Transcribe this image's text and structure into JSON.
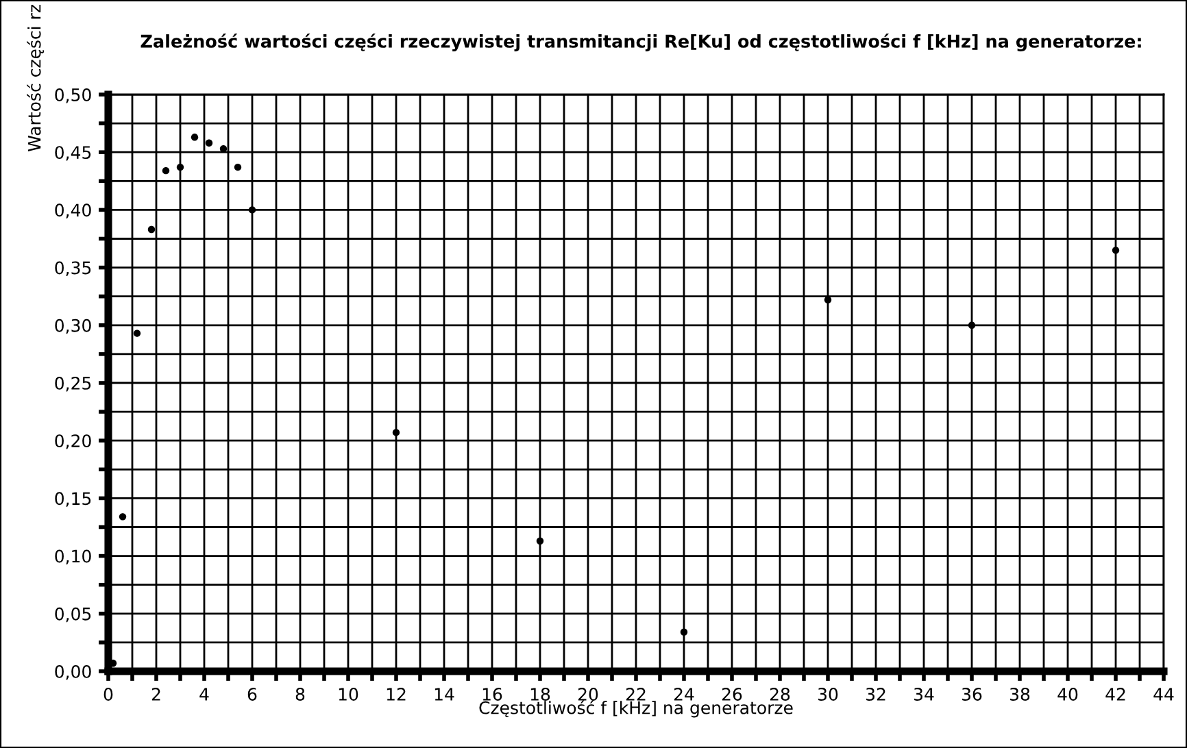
{
  "chart_data": {
    "type": "scatter",
    "title": "Zależność wartości części rzeczywistej transmitancji Re[Ku] od częstotliwości f [kHz] na generatorze:",
    "xlabel": "Częstotliwość f [kHz] na generatorze",
    "ylabel": "Wartość części rz",
    "x": [
      0.2,
      0.6,
      1.2,
      1.8,
      2.4,
      3.0,
      3.6,
      4.2,
      4.8,
      5.4,
      6.0,
      12,
      18,
      24,
      30,
      36,
      42
    ],
    "series": [
      {
        "color": "#000000",
        "values": [
          0.007,
          0.134,
          0.293,
          0.383,
          0.434,
          0.437,
          0.463,
          0.458,
          0.453,
          0.437,
          0.4,
          0.207,
          0.113,
          0.034,
          0.322,
          0.3,
          0.365
        ]
      }
    ],
    "marker": "circle",
    "grid": true,
    "legend": false,
    "xlim": [
      0,
      44
    ],
    "ylim": [
      0,
      0.5
    ],
    "xticks": [
      0,
      {
        "value": 1,
        "label": null
      },
      2,
      {
        "value": 3,
        "label": null
      },
      4,
      {
        "value": 5,
        "label": null
      },
      6,
      {
        "value": 7,
        "label": null
      },
      8,
      {
        "value": 9,
        "label": null
      },
      10,
      {
        "value": 11,
        "label": null
      },
      12,
      {
        "value": 13,
        "label": null
      },
      14,
      {
        "value": 15,
        "label": null
      },
      16,
      {
        "value": 17,
        "label": null
      },
      18,
      {
        "value": 19,
        "label": null
      },
      20,
      {
        "value": 21,
        "label": null
      },
      22,
      {
        "value": 23,
        "label": null
      },
      24,
      {
        "value": 25,
        "label": null
      },
      26,
      {
        "value": 27,
        "label": null
      },
      28,
      {
        "value": 29,
        "label": null
      },
      30,
      {
        "value": 31,
        "label": null
      },
      32,
      {
        "value": 33,
        "label": null
      },
      34,
      {
        "value": 35,
        "label": null
      },
      36,
      {
        "value": 37,
        "label": null
      },
      38,
      {
        "value": 39,
        "label": null
      },
      40,
      {
        "value": 41,
        "label": null
      },
      42,
      {
        "value": 43,
        "label": null
      },
      44
    ],
    "yticks": [
      {
        "value": 0,
        "label": "0,00"
      },
      {
        "value": 0.025,
        "label": null
      },
      {
        "value": 0.05,
        "label": "0,05"
      },
      {
        "value": 0.075,
        "label": null
      },
      {
        "value": 0.1,
        "label": "0,10"
      },
      {
        "value": 0.125,
        "label": null
      },
      {
        "value": 0.15,
        "label": "0,15"
      },
      {
        "value": 0.175,
        "label": null
      },
      {
        "value": 0.2,
        "label": "0,20"
      },
      {
        "value": 0.225,
        "label": null
      },
      {
        "value": 0.25,
        "label": "0,25"
      },
      {
        "value": 0.275,
        "label": null
      },
      {
        "value": 0.3,
        "label": "0,30"
      },
      {
        "value": 0.325,
        "label": null
      },
      {
        "value": 0.35,
        "label": "0,35"
      },
      {
        "value": 0.375,
        "label": null
      },
      {
        "value": 0.4,
        "label": "0,40"
      },
      {
        "value": 0.425,
        "label": null
      },
      {
        "value": 0.45,
        "label": "0,45"
      },
      {
        "value": 0.475,
        "label": null
      },
      {
        "value": 0.5,
        "label": "0,50"
      }
    ]
  }
}
